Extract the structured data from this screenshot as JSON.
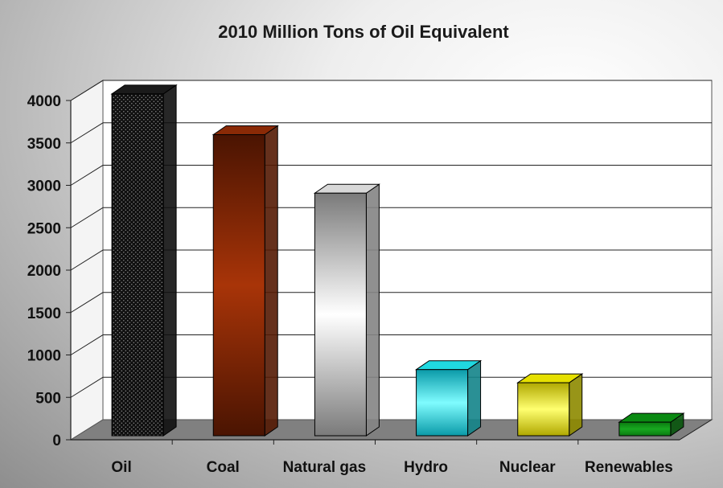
{
  "chart_data": {
    "type": "bar",
    "title": "2010 Million Tons of Oil Equivalent",
    "categories": [
      "Oil",
      "Coal",
      "Natural gas",
      "Hydro",
      "Nuclear",
      "Renewables"
    ],
    "values": [
      4030,
      3550,
      2860,
      780,
      625,
      160
    ],
    "ylim": [
      0,
      4000
    ],
    "yticks": [
      0,
      500,
      1000,
      1500,
      2000,
      2500,
      3000,
      3500,
      4000
    ],
    "grid": true,
    "legend": "none",
    "style": "3d",
    "colors": [
      "#1a1a1a",
      "#8a2a06",
      "#d8d8d8",
      "#20d8e0",
      "#e6e000",
      "#0a8a12"
    ]
  }
}
